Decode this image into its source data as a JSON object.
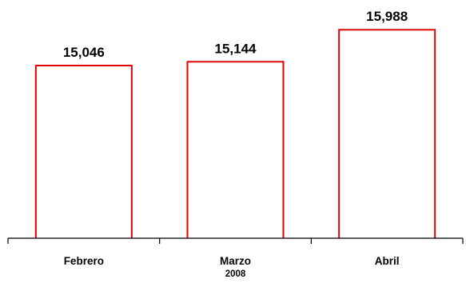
{
  "chart_data": {
    "type": "bar",
    "title": "",
    "xlabel": "",
    "ylabel": "",
    "categories": [
      "Febrero",
      "Marzo",
      "Abril"
    ],
    "category_sublabels": [
      "",
      "2008",
      ""
    ],
    "values": [
      15046,
      15144,
      15988
    ],
    "value_labels": [
      "15,046",
      "15,144",
      "15,988"
    ],
    "ylim": [
      10500,
      16350
    ],
    "grid": false,
    "legend": "none",
    "colors": {
      "bar_fill": "#ffffff",
      "bar_stroke": "#e00000",
      "axis": "#000000",
      "text": "#000000"
    }
  }
}
